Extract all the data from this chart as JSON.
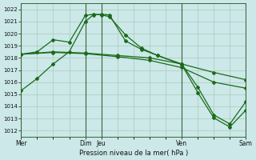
{
  "bg_color": "#cce8e8",
  "grid_color": "#aaccbb",
  "line_color": "#1a6b1a",
  "title": "Pression niveau de la mer( hPa )",
  "ylim": [
    1011.5,
    1022.5
  ],
  "yticks": [
    1012,
    1013,
    1014,
    1015,
    1016,
    1017,
    1018,
    1019,
    1020,
    1021,
    1022
  ],
  "xtick_labels_named": [
    "Mer",
    "Dim",
    "Jeu",
    "Ven",
    "Sam"
  ],
  "xtick_positions_named": [
    0,
    8,
    10,
    20,
    28
  ],
  "total_points": 29,
  "vline_positions": [
    0,
    8,
    10,
    20,
    28
  ],
  "line1_x": [
    0,
    2,
    4,
    6,
    8,
    9,
    10,
    11,
    13,
    15,
    17,
    20,
    22,
    24,
    26,
    28
  ],
  "line1_y": [
    1015.3,
    1016.3,
    1017.5,
    1018.5,
    1021.0,
    1021.55,
    1021.6,
    1021.55,
    1019.4,
    1018.7,
    1018.2,
    1017.5,
    1015.6,
    1013.3,
    1012.55,
    1014.4
  ],
  "line2_x": [
    0,
    2,
    4,
    6,
    8,
    9,
    10,
    11,
    13,
    15,
    17,
    20,
    22,
    24,
    26,
    28
  ],
  "line2_y": [
    1018.3,
    1018.5,
    1019.5,
    1019.3,
    1021.5,
    1021.6,
    1021.55,
    1021.4,
    1019.9,
    1018.8,
    1018.2,
    1017.45,
    1015.15,
    1013.05,
    1012.3,
    1013.7
  ],
  "line3_x": [
    0,
    4,
    8,
    12,
    16,
    20,
    24,
    28
  ],
  "line3_y": [
    1018.3,
    1018.45,
    1018.35,
    1018.1,
    1017.8,
    1017.2,
    1016.0,
    1015.5
  ],
  "line4_x": [
    0,
    4,
    8,
    12,
    16,
    20,
    24,
    28
  ],
  "line4_y": [
    1018.3,
    1018.5,
    1018.4,
    1018.2,
    1018.0,
    1017.5,
    1016.8,
    1016.2
  ]
}
